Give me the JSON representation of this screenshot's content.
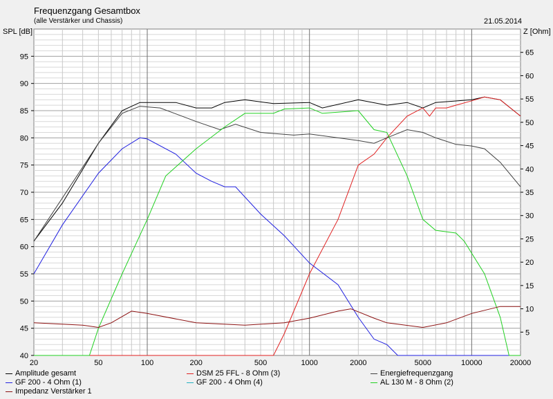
{
  "chart_data": {
    "type": "line",
    "title": "Frequenzgang Gesamtbox",
    "subtitle": "(alle Verstärker und Chassis)",
    "date": "21.05.2014",
    "ylabel": "SPL [dB]",
    "y2label": "Z [Ohm]",
    "xscale": "log",
    "xlim": [
      20,
      20000
    ],
    "ylim": [
      40,
      100
    ],
    "y2lim": [
      0,
      70
    ],
    "grid": true,
    "legend_position": "bottom",
    "xticks": [
      "20",
      "50",
      "100",
      "200",
      "500",
      "1000",
      "2000",
      "5000",
      "10000",
      "20000"
    ],
    "yticks": [
      "40",
      "45",
      "50",
      "55",
      "60",
      "65",
      "70",
      "75",
      "80",
      "85",
      "90",
      "95"
    ],
    "y2ticks": [
      "5",
      "10",
      "15",
      "20",
      "25",
      "30",
      "35",
      "40",
      "45",
      "50",
      "55",
      "60",
      "65"
    ],
    "series": [
      {
        "name": "Amplitude gesamt",
        "color": "#000000",
        "axis": "left",
        "x": [
          20,
          30,
          50,
          70,
          90,
          150,
          200,
          250,
          300,
          400,
          600,
          1000,
          1200,
          2000,
          3000,
          4000,
          5000,
          6000,
          10000,
          12000,
          15000,
          20000
        ],
        "y": [
          61,
          68,
          79,
          85,
          86.5,
          86.5,
          85.5,
          85.5,
          86.5,
          87,
          86.3,
          86.5,
          85.5,
          87,
          86,
          86.5,
          85.5,
          86.5,
          87,
          87.5,
          87,
          84
        ]
      },
      {
        "name": "DSM 25 FFL - 8 Ohm (3)",
        "color": "#e02020",
        "axis": "left",
        "x": [
          20,
          600,
          700,
          1000,
          1500,
          2000,
          2500,
          3000,
          4000,
          5000,
          5500,
          6000,
          7000,
          8000,
          10000,
          12000,
          15000,
          20000
        ],
        "y": [
          40,
          40,
          44,
          55,
          65,
          75,
          77,
          80,
          84,
          85.5,
          84,
          85.5,
          85.5,
          86,
          86.8,
          87.5,
          87,
          84
        ]
      },
      {
        "name": "Energiefrequenzgang",
        "color": "#404040",
        "axis": "left",
        "x": [
          20,
          50,
          70,
          90,
          120,
          200,
          280,
          350,
          500,
          800,
          1000,
          2000,
          2500,
          3000,
          4000,
          5000,
          6000,
          8000,
          10000,
          12000,
          15000,
          20000
        ],
        "y": [
          61,
          79,
          84.5,
          85.8,
          85.5,
          83,
          81.5,
          82.5,
          81,
          80.5,
          80.7,
          79.5,
          79,
          80,
          81.5,
          81,
          80,
          78.8,
          78.5,
          78,
          75.5,
          71
        ]
      },
      {
        "name": "GF 200 - 4 Ohm  (1)",
        "color": "#2020e0",
        "axis": "left",
        "x": [
          20,
          30,
          50,
          70,
          90,
          100,
          150,
          200,
          250,
          300,
          350,
          500,
          700,
          1000,
          1500,
          2000,
          2500,
          3000,
          3500,
          20000
        ],
        "y": [
          55,
          64,
          73.5,
          78,
          80,
          79.8,
          77,
          73.5,
          72,
          71,
          71,
          66,
          62,
          57,
          53,
          47,
          43,
          42,
          40,
          40
        ]
      },
      {
        "name": "GF 200 - 4 Ohm  (4)",
        "color": "#20b0c0",
        "axis": "left",
        "x": [],
        "y": []
      },
      {
        "name": "AL 130 M - 8 Ohm (2)",
        "color": "#20d020",
        "axis": "left",
        "x": [
          20,
          44,
          50,
          70,
          100,
          130,
          200,
          300,
          400,
          600,
          700,
          1000,
          1200,
          2000,
          2500,
          3000,
          4000,
          5000,
          6000,
          8000,
          9000,
          12000,
          15000,
          17000,
          20000
        ],
        "y": [
          40,
          40,
          45,
          55,
          65,
          73,
          78,
          82,
          84.5,
          84.5,
          85.3,
          85.5,
          84.5,
          85,
          81.5,
          81,
          73,
          65,
          63,
          62.5,
          61,
          55,
          47,
          40,
          40
        ]
      },
      {
        "name": "Impedanz Verstärker 1",
        "color": "#8b1010",
        "axis": "right",
        "x": [
          20,
          40,
          50,
          60,
          80,
          100,
          200,
          400,
          700,
          1000,
          1500,
          1800,
          2500,
          3000,
          5000,
          7000,
          10000,
          15000,
          20000
        ],
        "y": [
          7,
          6.5,
          6,
          7,
          9.5,
          9,
          7,
          6.5,
          7,
          8,
          9.5,
          10,
          8,
          7,
          6,
          7,
          9,
          10.5,
          10.5
        ]
      }
    ]
  }
}
